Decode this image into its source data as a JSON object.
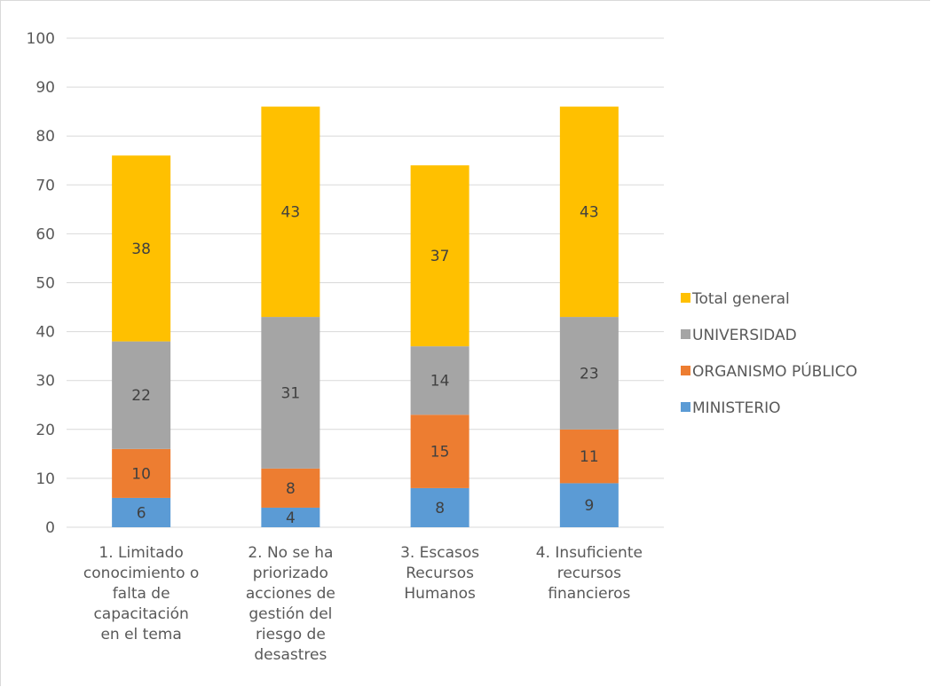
{
  "chart_data": {
    "type": "bar",
    "stacked": true,
    "title": "",
    "xlabel": "",
    "ylabel": "",
    "ylim": [
      0,
      100
    ],
    "yticks": [
      0,
      10,
      20,
      30,
      40,
      50,
      60,
      70,
      80,
      90,
      100
    ],
    "grid": true,
    "legend_position": "right",
    "categories": [
      [
        "1. Limitado",
        "conocimiento o",
        "falta de",
        "capacitación",
        "en el tema"
      ],
      [
        "2. No se ha",
        "priorizado",
        "acciones de",
        "gestión del",
        "riesgo de",
        "desastres"
      ],
      [
        "3. Escasos",
        "Recursos",
        "Humanos"
      ],
      [
        "4. Insuficiente",
        "recursos",
        "financieros"
      ]
    ],
    "series": [
      {
        "name": "MINISTERIO",
        "color": "#5b9bd5",
        "values": [
          6,
          4,
          8,
          9
        ]
      },
      {
        "name": "ORGANISMO PÚBLICO",
        "color": "#ed7d31",
        "values": [
          10,
          8,
          15,
          11
        ]
      },
      {
        "name": "UNIVERSIDAD",
        "color": "#a5a5a5",
        "values": [
          22,
          31,
          14,
          23
        ]
      },
      {
        "name": "Total general",
        "color": "#ffc000",
        "values": [
          38,
          43,
          37,
          43
        ]
      }
    ]
  }
}
